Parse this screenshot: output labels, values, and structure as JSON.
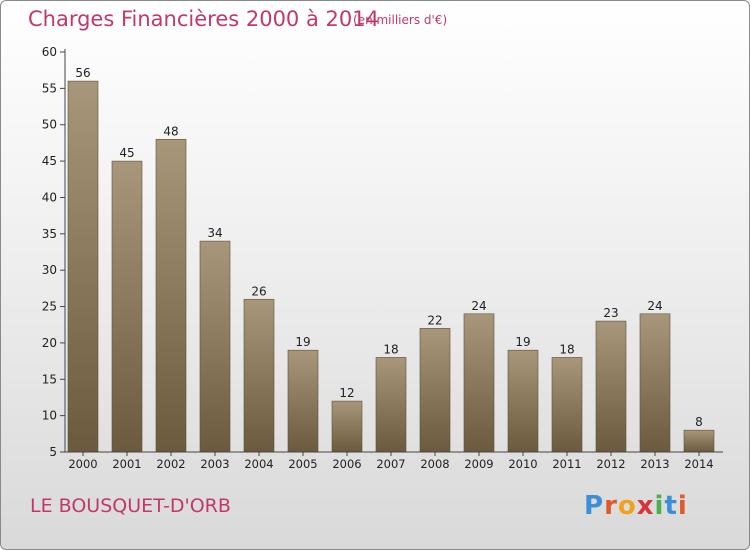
{
  "header": {
    "title": "Charges Financières 2000 à 2014",
    "unit": "(en milliers d'€)"
  },
  "footer": {
    "town": "LE BOUSQUET-D'ORB",
    "brand_letters": [
      {
        "char": "P",
        "color": "#3a8fd6"
      },
      {
        "char": "r",
        "color": "#e05a2a"
      },
      {
        "char": "o",
        "color": "#f0a21c"
      },
      {
        "char": "x",
        "color": "#d8343a"
      },
      {
        "char": "i",
        "color": "#4caf50"
      },
      {
        "char": "t",
        "color": "#3a8fd6"
      },
      {
        "char": "i",
        "color": "#e05a2a"
      }
    ]
  },
  "chart_data": {
    "type": "bar",
    "categories": [
      "2000",
      "2001",
      "2002",
      "2003",
      "2004",
      "2005",
      "2006",
      "2007",
      "2008",
      "2009",
      "2010",
      "2011",
      "2012",
      "2013",
      "2014"
    ],
    "values": [
      56,
      45,
      48,
      34,
      26,
      19,
      12,
      18,
      22,
      24,
      19,
      18,
      23,
      24,
      8
    ],
    "ylim": [
      5,
      60
    ],
    "yticks": [
      5,
      10,
      15,
      20,
      25,
      30,
      35,
      40,
      45,
      50,
      55,
      60
    ],
    "grid": false,
    "colors": {
      "bar_top": "#a8977a",
      "bar_bottom": "#6b5a3e",
      "axis": "#444444",
      "text": "#222222"
    }
  }
}
